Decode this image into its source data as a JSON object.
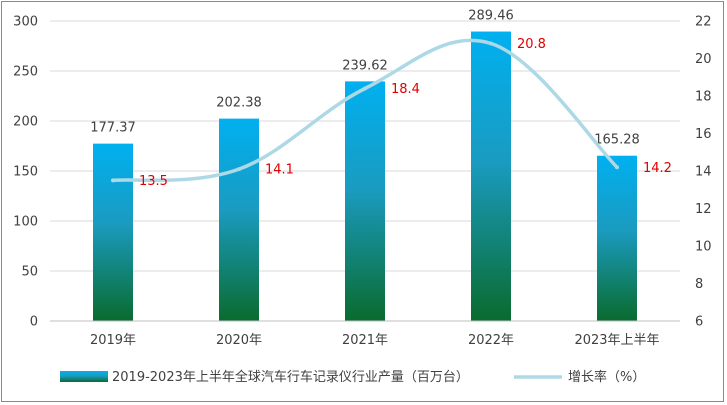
{
  "chart_data": {
    "type": "bar",
    "categories": [
      "2019年",
      "2020年",
      "2021年",
      "2022年",
      "2023年上半年"
    ],
    "series": [
      {
        "name": "2019-2023年上半年全球汽车行车记录仪行业产量（百万台）",
        "type": "bar",
        "axis": "left",
        "values": [
          177.37,
          202.38,
          239.62,
          289.46,
          165.28
        ],
        "value_labels": [
          "177.37",
          "202.38",
          "239.62",
          "289.46",
          "165.28"
        ]
      },
      {
        "name": "增长率（%）",
        "type": "line",
        "axis": "right",
        "values": [
          13.5,
          14.1,
          18.4,
          20.8,
          14.2
        ],
        "value_labels": [
          "13.5",
          "14.1",
          "18.4",
          "20.8",
          "14.2"
        ]
      }
    ],
    "y_left": {
      "min": 0,
      "max": 300,
      "ticks": [
        0,
        50,
        100,
        150,
        200,
        250,
        300
      ]
    },
    "y_right": {
      "min": 6,
      "max": 22,
      "ticks": [
        6,
        8,
        10,
        12,
        14,
        16,
        18,
        20,
        22
      ]
    },
    "grid": true,
    "legend_position": "bottom",
    "colors": {
      "bar_top": "#00b0f0",
      "bar_bottom": "#0a6b2e",
      "line": "#add8e6",
      "rate_label": "#e00000",
      "grid": "#d9d9d9",
      "text": "#404040"
    }
  }
}
